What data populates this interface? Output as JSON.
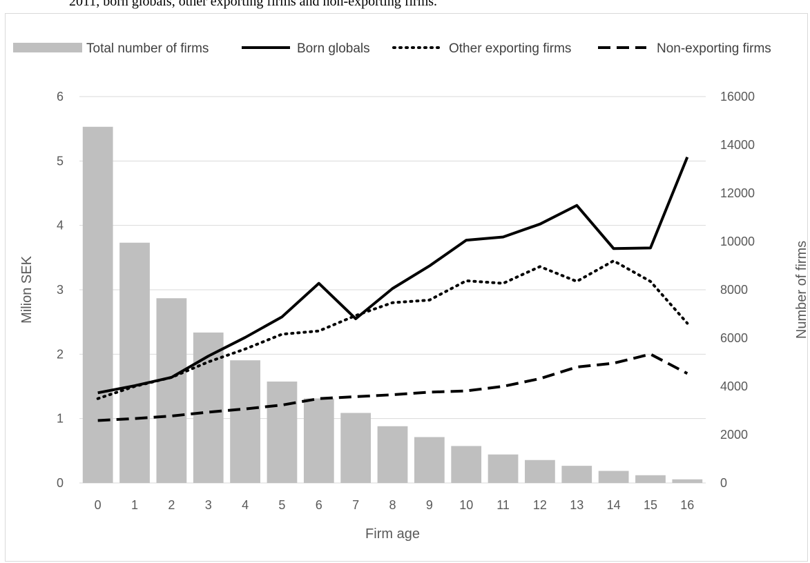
{
  "caption": "2011, born globals, other exporting firms and non-exporting firms.",
  "chart_data": {
    "type": "bar",
    "categories": [
      "0",
      "1",
      "2",
      "3",
      "4",
      "5",
      "6",
      "7",
      "8",
      "9",
      "10",
      "11",
      "12",
      "13",
      "14",
      "15",
      "16"
    ],
    "xlabel": "Firm age",
    "ylabel": "Milion SEK",
    "y2label": "Number of firms",
    "ylim": [
      0,
      6
    ],
    "y2lim": [
      0,
      16000
    ],
    "yticks": [
      "0",
      "1",
      "2",
      "3",
      "4",
      "5",
      "6"
    ],
    "y2ticks": [
      "0",
      "2000",
      "4000",
      "6000",
      "8000",
      "10000",
      "12000",
      "14000",
      "16000"
    ],
    "grid": true,
    "legend_position": "top",
    "series": [
      {
        "name": "Total number of firms",
        "type": "bar",
        "axis": "right",
        "color": "#bfbfbf",
        "values": [
          14750,
          9950,
          7650,
          6230,
          5080,
          4200,
          3500,
          2900,
          2350,
          1900,
          1530,
          1180,
          950,
          710,
          500,
          320,
          150
        ]
      },
      {
        "name": "Born globals",
        "type": "line",
        "style": "solid",
        "axis": "left",
        "color": "#000000",
        "values": [
          1.4,
          1.51,
          1.64,
          1.97,
          2.26,
          2.58,
          3.1,
          2.55,
          3.02,
          3.37,
          3.77,
          3.82,
          4.02,
          4.31,
          3.64,
          3.65,
          5.06
        ]
      },
      {
        "name": "Other exporting firms",
        "type": "line",
        "style": "dotted",
        "axis": "left",
        "color": "#000000",
        "values": [
          1.31,
          1.5,
          1.64,
          1.88,
          2.08,
          2.31,
          2.36,
          2.6,
          2.8,
          2.84,
          3.14,
          3.1,
          3.36,
          3.13,
          3.45,
          3.13,
          2.48
        ]
      },
      {
        "name": "Non-exporting firms",
        "type": "line",
        "style": "dashed",
        "axis": "left",
        "color": "#000000",
        "values": [
          0.97,
          1.0,
          1.04,
          1.1,
          1.15,
          1.21,
          1.31,
          1.34,
          1.37,
          1.41,
          1.43,
          1.5,
          1.62,
          1.8,
          1.86,
          2.0,
          1.7
        ]
      }
    ]
  }
}
